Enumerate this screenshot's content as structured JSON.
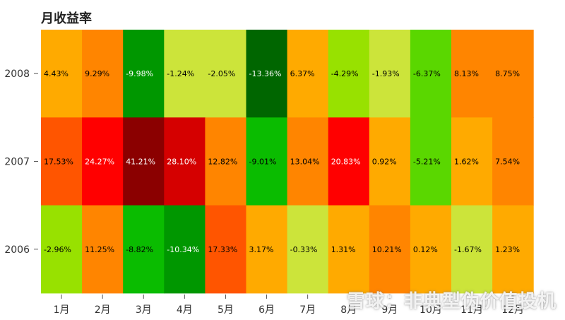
{
  "chart_data": {
    "type": "heatmap",
    "title": "月收益率",
    "x_categories": [
      "1月",
      "2月",
      "3月",
      "4月",
      "5月",
      "6月",
      "7月",
      "8月",
      "9月",
      "10月",
      "11月",
      "12月"
    ],
    "y_categories": [
      "2008",
      "2007",
      "2006"
    ],
    "values": [
      [
        4.43,
        9.29,
        -9.98,
        -1.24,
        -2.05,
        -13.36,
        6.37,
        -4.29,
        -1.93,
        -6.37,
        8.13,
        8.75
      ],
      [
        17.53,
        24.27,
        41.21,
        28.1,
        12.82,
        -9.01,
        13.04,
        20.83,
        0.92,
        -5.21,
        1.62,
        7.54
      ],
      [
        -2.96,
        11.25,
        -8.82,
        -10.34,
        17.33,
        3.17,
        -0.33,
        1.31,
        10.21,
        0.12,
        -1.67,
        1.23
      ]
    ],
    "labels": [
      [
        "4.43%",
        "9.29%",
        "-9.98%",
        "-1.24%",
        "-2.05%",
        "-13.36%",
        "6.37%",
        "-4.29%",
        "-1.93%",
        "-6.37%",
        "8.13%",
        "8.75%"
      ],
      [
        "17.53%",
        "24.27%",
        "41.21%",
        "28.10%",
        "12.82%",
        "-9.01%",
        "13.04%",
        "20.83%",
        "0.92%",
        "-5.21%",
        "1.62%",
        "7.54%"
      ],
      [
        "-2.96%",
        "11.25%",
        "-8.82%",
        "-10.34%",
        "17.33%",
        "3.17%",
        "-0.33%",
        "1.31%",
        "10.21%",
        "0.12%",
        "-1.67%",
        "1.23%"
      ]
    ],
    "colors": [
      [
        "#FFAA00",
        "#FF8500",
        "#009700",
        "#CCE43A",
        "#CCE43A",
        "#006600",
        "#FFAA00",
        "#98E100",
        "#CCE43A",
        "#5AD700",
        "#FF8500",
        "#FF8500"
      ],
      [
        "#FF5500",
        "#FF0000",
        "#8B0000",
        "#D50000",
        "#FF8500",
        "#0ABC00",
        "#FF8500",
        "#FF0000",
        "#FFAA00",
        "#5AD700",
        "#FFAA00",
        "#FF8500"
      ],
      [
        "#98E100",
        "#FF8500",
        "#0ABC00",
        "#009700",
        "#FF5500",
        "#FFAA00",
        "#CCE43A",
        "#FFAA00",
        "#FF8500",
        "#FFAA00",
        "#CCE43A",
        "#FFAA00"
      ]
    ],
    "light_text_color": "#ffffff",
    "dark_text_color": "#000000"
  },
  "watermark": "雪球：非典型伪价值投机"
}
